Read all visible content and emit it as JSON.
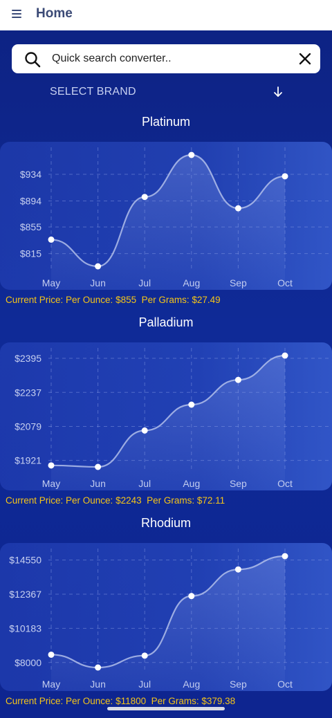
{
  "header": {
    "title": "Home",
    "menu_icon": "hamburger-menu-icon"
  },
  "search": {
    "placeholder": "Quick search converter..",
    "value": "",
    "search_icon": "search-icon",
    "clear_icon": "close-icon"
  },
  "brand": {
    "label": "SELECT BRAND",
    "icon": "arrow-down-icon"
  },
  "colors": {
    "background": "#0f2a97",
    "price_text": "#f5c518",
    "line": "#b9c6ee",
    "point": "#ffffff"
  },
  "charts": [
    {
      "title": "Platinum",
      "price_prefix": "Current Price: Per Ounce: ",
      "per_ounce": "$855",
      "grams_prefix": "Per Grams: ",
      "per_grams": "$27.49"
    },
    {
      "title": "Palladium",
      "price_prefix": "Current Price: Per Ounce: ",
      "per_ounce": "$2243",
      "grams_prefix": "Per Grams: ",
      "per_grams": "$72.11"
    },
    {
      "title": "Rhodium",
      "price_prefix": "Current Price: Per Ounce: ",
      "per_ounce": "$11800",
      "grams_prefix": "Per Grams: ",
      "per_grams": "$379.38"
    }
  ],
  "chart_data": [
    {
      "type": "area",
      "title": "Platinum",
      "categories": [
        "May",
        "Jun",
        "Jul",
        "Aug",
        "Sep",
        "Oct"
      ],
      "values": [
        836,
        796,
        900,
        963,
        883,
        931
      ],
      "y_ticks": [
        "$815",
        "$855",
        "$894",
        "$934"
      ],
      "y_tick_values": [
        815,
        855,
        894,
        934
      ],
      "ylim": [
        796,
        963
      ],
      "grid": true
    },
    {
      "type": "area",
      "title": "Palladium",
      "categories": [
        "May",
        "Jun",
        "Jul",
        "Aug",
        "Sep",
        "Oct"
      ],
      "values": [
        1898,
        1891,
        2060,
        2180,
        2295,
        2408
      ],
      "y_ticks": [
        "$1921",
        "$2079",
        "$2237",
        "$2395"
      ],
      "y_tick_values": [
        1921,
        2079,
        2237,
        2395
      ],
      "ylim": [
        1891,
        2408
      ],
      "grid": true
    },
    {
      "type": "area",
      "title": "Rhodium",
      "categories": [
        "May",
        "Jun",
        "Jul",
        "Aug",
        "Sep",
        "Oct"
      ],
      "values": [
        8500,
        7680,
        8440,
        12250,
        13950,
        14800
      ],
      "y_ticks": [
        "$8000",
        "$10183",
        "$12367",
        "$14550"
      ],
      "y_tick_values": [
        8000,
        10183,
        12367,
        14550
      ],
      "ylim": [
        7680,
        14800
      ],
      "grid": true
    }
  ]
}
